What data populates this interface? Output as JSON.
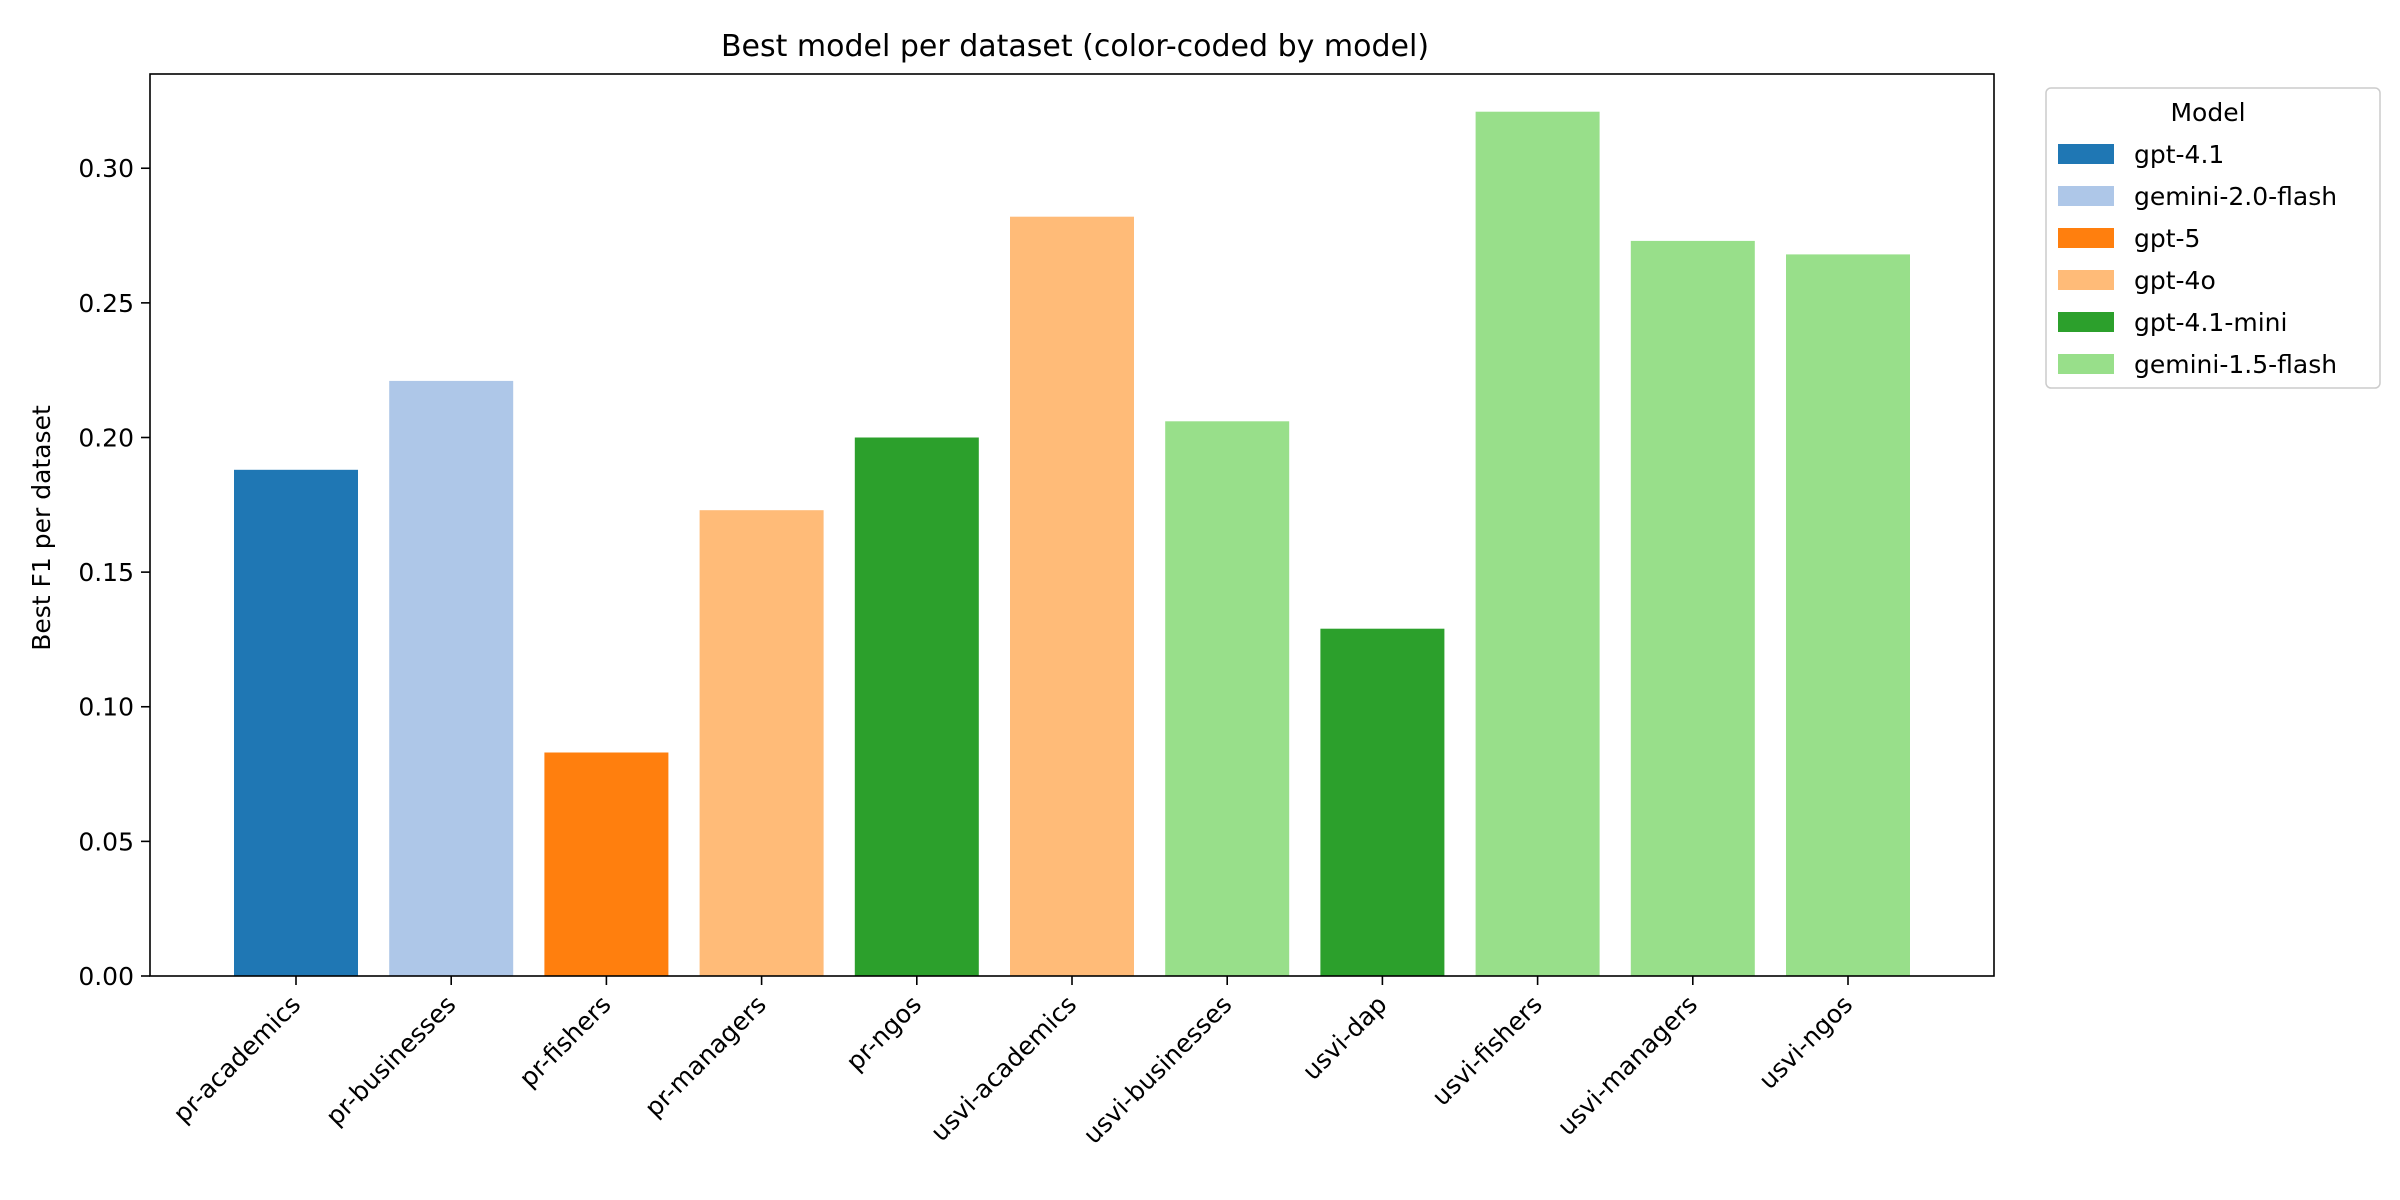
{
  "chart_data": {
    "type": "bar",
    "title": "Best model per dataset (color-coded by model)",
    "xlabel": "",
    "ylabel": "Best F1 per dataset",
    "ylim": [
      0,
      0.335
    ],
    "yticks": [
      "0.00",
      "0.05",
      "0.10",
      "0.15",
      "0.20",
      "0.25",
      "0.30"
    ],
    "grid": false,
    "legend_placement": "outside-top-right",
    "legend_title": "Model",
    "legend": [
      {
        "name": "gpt-4.1",
        "color": "#1f77b4"
      },
      {
        "name": "gemini-2.0-flash",
        "color": "#aec7e8"
      },
      {
        "name": "gpt-5",
        "color": "#ff7f0e"
      },
      {
        "name": "gpt-4o",
        "color": "#ffbb78"
      },
      {
        "name": "gpt-4.1-mini",
        "color": "#2ca02c"
      },
      {
        "name": "gemini-1.5-flash",
        "color": "#98df8a"
      }
    ],
    "categories": [
      "pr-academics",
      "pr-businesses",
      "pr-fishers",
      "pr-managers",
      "pr-ngos",
      "usvi-academics",
      "usvi-businesses",
      "usvi-dap",
      "usvi-fishers",
      "usvi-managers",
      "usvi-ngos"
    ],
    "values": [
      0.188,
      0.221,
      0.083,
      0.173,
      0.2,
      0.282,
      0.206,
      0.129,
      0.321,
      0.273,
      0.268
    ],
    "bar_models": [
      "gpt-4.1",
      "gemini-2.0-flash",
      "gpt-5",
      "gpt-4o",
      "gpt-4.1-mini",
      "gpt-4o",
      "gemini-1.5-flash",
      "gpt-4.1-mini",
      "gemini-1.5-flash",
      "gemini-1.5-flash",
      "gemini-1.5-flash"
    ]
  }
}
